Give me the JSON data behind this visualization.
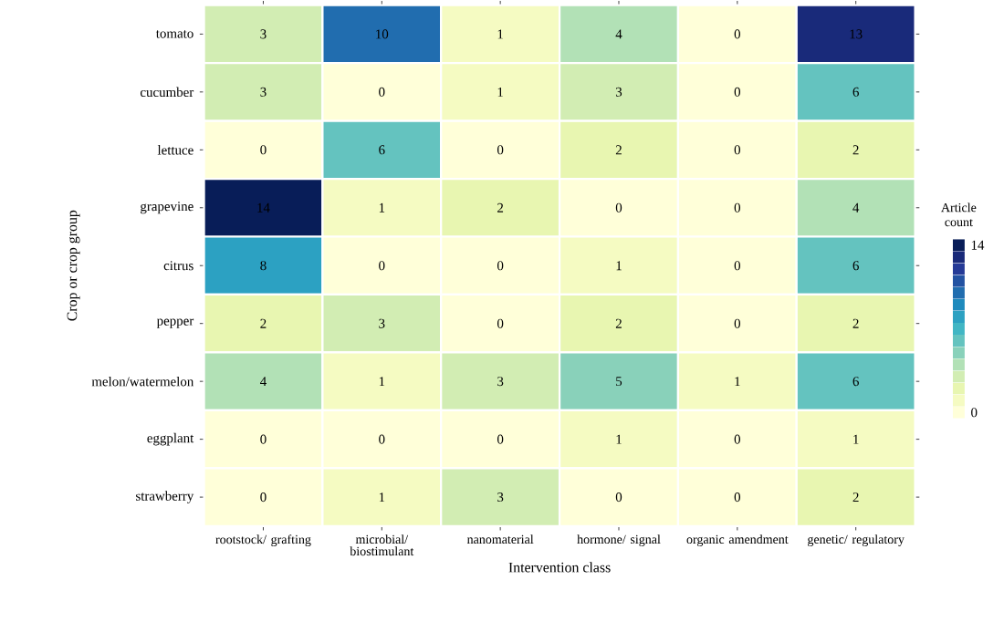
{
  "chart_data": {
    "type": "heatmap",
    "xlabel": "Intervention class",
    "ylabel": "Crop or crop group",
    "clabel": "Article count",
    "categories": [
      "rootstock/ grafting",
      "microbial/ biostimulant",
      "nanomaterial",
      "hormone/ signal",
      "organic amendment",
      "genetic/ regulatory"
    ],
    "y_categories": [
      "tomato",
      "cucumber",
      "lettuce",
      "grapevine",
      "citrus",
      "pepper",
      "melon/watermelon",
      "eggplant",
      "strawberry"
    ],
    "cells": [
      [
        3,
        10,
        1,
        4,
        0,
        13
      ],
      [
        3,
        0,
        1,
        3,
        0,
        6
      ],
      [
        0,
        6,
        0,
        2,
        0,
        2
      ],
      [
        14,
        1,
        2,
        0,
        0,
        4
      ],
      [
        8,
        0,
        0,
        1,
        0,
        6
      ],
      [
        2,
        3,
        0,
        2,
        0,
        2
      ],
      [
        4,
        1,
        3,
        5,
        1,
        6
      ],
      [
        0,
        0,
        0,
        1,
        0,
        1
      ],
      [
        0,
        1,
        3,
        0,
        0,
        2
      ]
    ],
    "data_labels": true,
    "clim": [
      0,
      14
    ],
    "cticks": [
      0,
      14
    ]
  }
}
